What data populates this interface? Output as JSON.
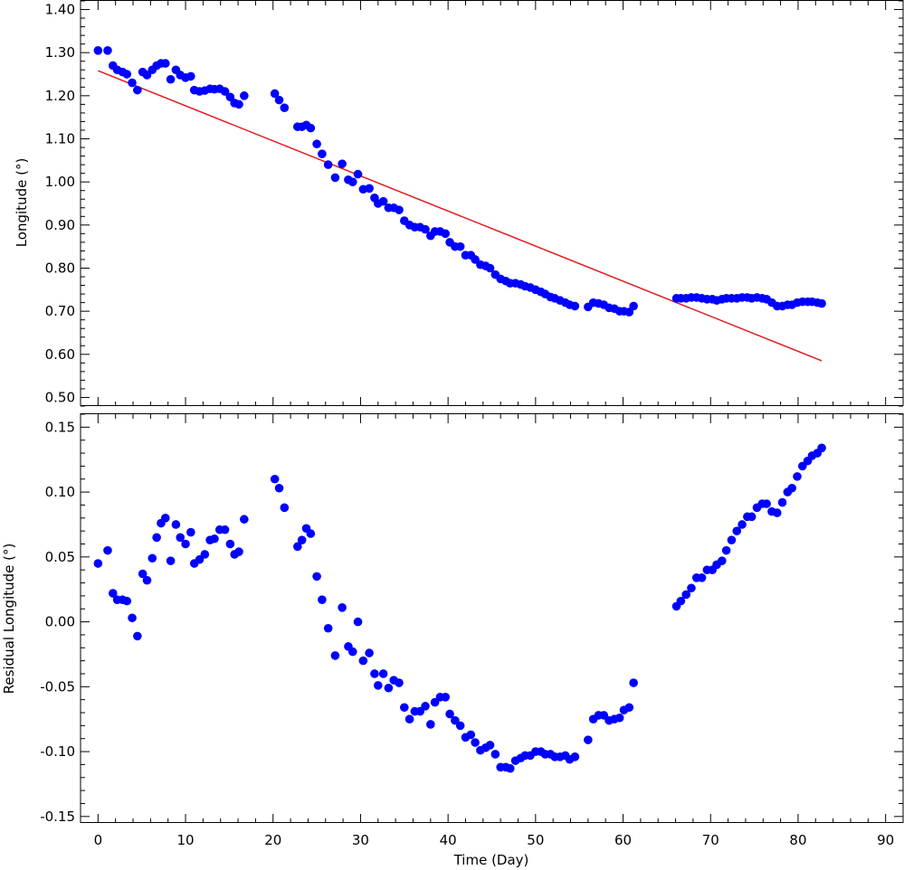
{
  "chart_data": [
    {
      "type": "scatter",
      "ylabel": "Longitude (°)",
      "xlim": [
        -2,
        92
      ],
      "ylim": [
        0.48,
        1.42
      ],
      "x_ticks": [
        "0",
        "10",
        "20",
        "30",
        "40",
        "50",
        "60",
        "70",
        "80",
        "90"
      ],
      "y_ticks": [
        "0.50",
        "0.60",
        "0.70",
        "0.80",
        "0.90",
        "1.00",
        "1.10",
        "1.20",
        "1.30",
        "1.40"
      ],
      "series": [
        {
          "type": "scatter",
          "color": "#0000ff",
          "x": [
            0,
            1.1,
            1.7,
            2.2,
            2.8,
            3.3,
            3.9,
            4.5,
            5.1,
            5.6,
            6.2,
            6.7,
            7.2,
            7.7,
            8.3,
            8.9,
            9.4,
            10,
            10.6,
            11,
            11.6,
            12.2,
            12.8,
            13.3,
            13.9,
            14.5,
            15.1,
            15.6,
            16.1,
            16.7,
            20.2,
            20.7,
            21.3,
            22.8,
            23.3,
            23.8,
            24.3,
            25.0,
            25.6,
            26.3,
            27.1,
            27.9,
            28.6,
            29.1,
            29.7,
            30.3,
            31.0,
            31.6,
            32.0,
            32.6,
            33.2,
            33.8,
            34.4,
            35.0,
            35.6,
            36.2,
            36.8,
            37.4,
            38.0,
            38.5,
            39.1,
            39.7,
            40.2,
            40.8,
            41.4,
            42.0,
            42.6,
            43.1,
            43.7,
            44.3,
            44.8,
            45.4,
            46.0,
            46.6,
            47.1,
            47.7,
            48.3,
            48.8,
            49.4,
            50.0,
            50.6,
            51.1,
            51.7,
            52.2,
            52.8,
            53.4,
            53.9,
            54.5,
            56.0,
            56.6,
            57.2,
            57.8,
            58.4,
            59.0,
            59.6,
            60.1,
            60.7,
            61.2,
            66.1,
            66.6,
            67.2,
            67.8,
            68.4,
            69,
            69.6,
            70.2,
            70.7,
            71.3,
            71.8,
            72.4,
            73,
            73.6,
            74.2,
            74.7,
            75.3,
            75.9,
            76.4,
            77,
            77.6,
            78.2,
            78.8,
            79.3,
            79.9,
            80.5,
            81.1,
            81.6,
            82.2,
            82.7
          ],
          "y": [
            1.305,
            1.305,
            1.27,
            1.26,
            1.255,
            1.25,
            1.23,
            1.213,
            1.255,
            1.248,
            1.26,
            1.27,
            1.275,
            1.275,
            1.238,
            1.26,
            1.248,
            1.242,
            1.245,
            1.213,
            1.21,
            1.212,
            1.216,
            1.215,
            1.216,
            1.21,
            1.197,
            1.183,
            1.18,
            1.2,
            1.205,
            1.19,
            1.172,
            1.128,
            1.128,
            1.132,
            1.125,
            1.088,
            1.065,
            1.04,
            1.01,
            1.042,
            1.005,
            1.0,
            1.018,
            0.983,
            0.985,
            0.963,
            0.95,
            0.955,
            0.94,
            0.94,
            0.935,
            0.91,
            0.9,
            0.895,
            0.895,
            0.89,
            0.875,
            0.885,
            0.885,
            0.88,
            0.86,
            0.85,
            0.85,
            0.83,
            0.83,
            0.82,
            0.808,
            0.805,
            0.8,
            0.785,
            0.775,
            0.77,
            0.765,
            0.765,
            0.762,
            0.758,
            0.755,
            0.75,
            0.745,
            0.74,
            0.733,
            0.73,
            0.725,
            0.72,
            0.715,
            0.712,
            0.71,
            0.72,
            0.718,
            0.715,
            0.708,
            0.706,
            0.7,
            0.7,
            0.698,
            0.712,
            0.73,
            0.73,
            0.73,
            0.732,
            0.732,
            0.73,
            0.728,
            0.728,
            0.725,
            0.728,
            0.73,
            0.73,
            0.73,
            0.732,
            0.732,
            0.73,
            0.732,
            0.73,
            0.728,
            0.72,
            0.712,
            0.712,
            0.715,
            0.715,
            0.72,
            0.722,
            0.722,
            0.722,
            0.72,
            0.718
          ]
        },
        {
          "type": "line",
          "color": "#e31a1c",
          "x": [
            0,
            82.7
          ],
          "y": [
            1.258,
            0.585
          ]
        }
      ]
    },
    {
      "type": "scatter",
      "xlabel": "Time (Day)",
      "ylabel": "Residual Longitude (°)",
      "xlim": [
        -2,
        92
      ],
      "ylim": [
        -0.155,
        0.16
      ],
      "x_ticks": [
        "0",
        "10",
        "20",
        "30",
        "40",
        "50",
        "60",
        "70",
        "80",
        "90"
      ],
      "y_ticks": [
        "-0.15",
        "-0.10",
        "-0.05",
        "0.00",
        "0.05",
        "0.10",
        "0.15"
      ],
      "series": [
        {
          "type": "scatter",
          "color": "#0000ff",
          "x": [
            0,
            1.1,
            1.7,
            2.2,
            2.8,
            3.3,
            3.9,
            4.5,
            5.1,
            5.6,
            6.2,
            6.7,
            7.2,
            7.7,
            8.3,
            8.9,
            9.4,
            10,
            10.6,
            11,
            11.6,
            12.2,
            12.8,
            13.3,
            13.9,
            14.5,
            15.1,
            15.6,
            16.1,
            16.7,
            20.2,
            20.7,
            21.3,
            22.8,
            23.3,
            23.8,
            24.3,
            25.0,
            25.6,
            26.3,
            27.1,
            27.9,
            28.6,
            29.1,
            29.7,
            30.3,
            31.0,
            31.6,
            32.0,
            32.6,
            33.2,
            33.8,
            34.4,
            35.0,
            35.6,
            36.2,
            36.8,
            37.4,
            38.0,
            38.5,
            39.1,
            39.7,
            40.2,
            40.8,
            41.4,
            42.0,
            42.6,
            43.1,
            43.7,
            44.3,
            44.8,
            45.4,
            46.0,
            46.6,
            47.1,
            47.7,
            48.3,
            48.8,
            49.4,
            50.0,
            50.6,
            51.1,
            51.7,
            52.2,
            52.8,
            53.4,
            53.9,
            54.5,
            56.0,
            56.6,
            57.2,
            57.8,
            58.4,
            59.0,
            59.6,
            60.1,
            60.7,
            61.2,
            66.1,
            66.6,
            67.2,
            67.8,
            68.4,
            69,
            69.6,
            70.2,
            70.7,
            71.3,
            71.8,
            72.4,
            73,
            73.6,
            74.2,
            74.7,
            75.3,
            75.9,
            76.4,
            77,
            77.6,
            78.2,
            78.8,
            79.3,
            79.9,
            80.5,
            81.1,
            81.6,
            82.2,
            82.7
          ],
          "y": [
            0.045,
            0.055,
            0.022,
            0.017,
            0.017,
            0.016,
            0.003,
            -0.011,
            0.037,
            0.032,
            0.049,
            0.065,
            0.076,
            0.08,
            0.047,
            0.075,
            0.065,
            0.06,
            0.069,
            0.045,
            0.048,
            0.052,
            0.063,
            0.064,
            0.071,
            0.071,
            0.06,
            0.052,
            0.054,
            0.079,
            0.11,
            0.103,
            0.088,
            0.058,
            0.063,
            0.072,
            0.068,
            0.035,
            0.017,
            -0.005,
            -0.026,
            0.011,
            -0.019,
            -0.023,
            0.0,
            -0.03,
            -0.024,
            -0.04,
            -0.049,
            -0.04,
            -0.051,
            -0.045,
            -0.047,
            -0.066,
            -0.075,
            -0.069,
            -0.069,
            -0.065,
            -0.079,
            -0.062,
            -0.058,
            -0.058,
            -0.071,
            -0.076,
            -0.08,
            -0.089,
            -0.087,
            -0.093,
            -0.099,
            -0.097,
            -0.095,
            -0.102,
            -0.112,
            -0.112,
            -0.113,
            -0.107,
            -0.105,
            -0.103,
            -0.103,
            -0.1,
            -0.1,
            -0.102,
            -0.102,
            -0.104,
            -0.104,
            -0.103,
            -0.106,
            -0.104,
            -0.091,
            -0.075,
            -0.072,
            -0.072,
            -0.076,
            -0.075,
            -0.074,
            -0.068,
            -0.066,
            -0.047,
            0.012,
            0.016,
            0.021,
            0.026,
            0.034,
            0.034,
            0.04,
            0.04,
            0.044,
            0.047,
            0.055,
            0.063,
            0.07,
            0.075,
            0.081,
            0.081,
            0.088,
            0.091,
            0.091,
            0.085,
            0.084,
            0.092,
            0.1,
            0.103,
            0.112,
            0.12,
            0.124,
            0.128,
            0.13,
            0.134
          ]
        }
      ]
    }
  ]
}
